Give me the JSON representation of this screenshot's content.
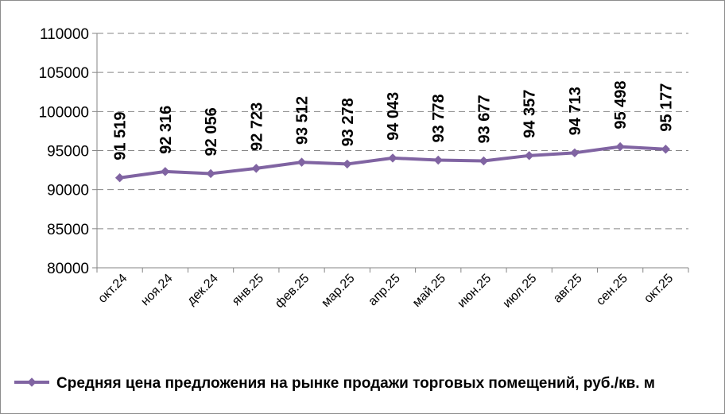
{
  "chart_data": {
    "type": "line",
    "categories": [
      "окт.24",
      "ноя.24",
      "дек.24",
      "янв.25",
      "фев.25",
      "мар.25",
      "апр.25",
      "май.25",
      "июн.25",
      "июл.25",
      "авг.25",
      "сен.25",
      "окт.25"
    ],
    "series": [
      {
        "name": "Средняя цена предложения на рынке продажи торговых помещений,  руб./кв. м",
        "values": [
          91519,
          92316,
          92056,
          92723,
          93512,
          93278,
          94043,
          93778,
          93677,
          94357,
          94713,
          95498,
          95177
        ],
        "labels": [
          "91 519",
          "92 316",
          "92 056",
          "92 723",
          "93 512",
          "93 278",
          "94 043",
          "93 778",
          "93 677",
          "94 357",
          "94 713",
          "95 498",
          "95 177"
        ],
        "color": "#8064a2"
      }
    ],
    "ylim": [
      80000,
      110000
    ],
    "yticks": [
      "110000",
      "105000",
      "100000",
      "95000",
      "90000",
      "85000",
      "80000"
    ],
    "grid": "horizontal dashed",
    "legend_position": "bottom"
  }
}
